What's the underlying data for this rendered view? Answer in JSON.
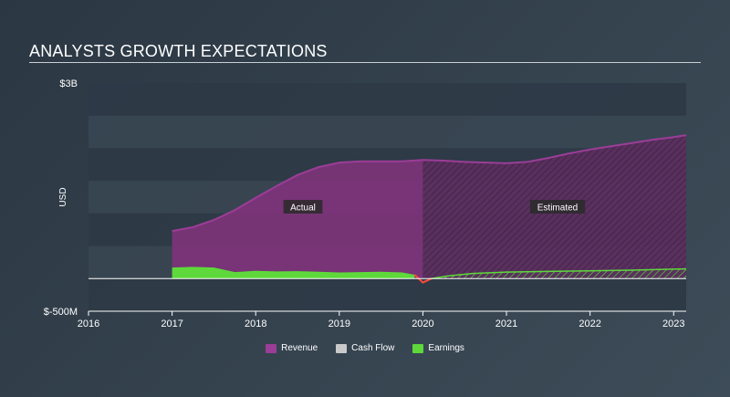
{
  "header": {
    "title": "ANALYSTS GROWTH EXPECTATIONS"
  },
  "chart_data": {
    "type": "area",
    "title": "ANALYSTS GROWTH EXPECTATIONS",
    "ylabel": "USD",
    "xlabel": "",
    "ylim": [
      -500,
      3000
    ],
    "y_unit": "M USD",
    "y_tick_labels": [
      {
        "value": 3000,
        "label": "$3B"
      },
      {
        "value": -500,
        "label": "$-500M"
      }
    ],
    "xlim": [
      2016.0,
      2023.15
    ],
    "x_tick_labels": [
      "2016",
      "2017",
      "2018",
      "2019",
      "2020",
      "2021",
      "2022",
      "2023"
    ],
    "x_ticks": [
      2016,
      2017,
      2018,
      2019,
      2020,
      2021,
      2022,
      2023
    ],
    "actual_end": 2020.0,
    "region_labels": {
      "actual": "Actual",
      "estimated": "Estimated"
    },
    "legend_position": "bottom-center",
    "series": [
      {
        "name": "Revenue",
        "color": "#9b3d97",
        "x": [
          2017.0,
          2017.25,
          2017.5,
          2017.75,
          2018.0,
          2018.25,
          2018.5,
          2018.75,
          2019.0,
          2019.25,
          2019.5,
          2019.75,
          2020.0,
          2020.25,
          2020.5,
          2020.75,
          2021.0,
          2021.25,
          2021.5,
          2021.75,
          2022.0,
          2022.25,
          2022.5,
          2022.75,
          2023.0,
          2023.15
        ],
        "values": [
          730,
          790,
          900,
          1050,
          1240,
          1420,
          1590,
          1710,
          1780,
          1800,
          1800,
          1800,
          1820,
          1810,
          1790,
          1780,
          1770,
          1790,
          1850,
          1920,
          1980,
          2030,
          2080,
          2130,
          2170,
          2200
        ]
      },
      {
        "name": "Cash Flow",
        "color": "#c9c9c9",
        "x": [],
        "values": []
      },
      {
        "name": "Earnings",
        "color": "#5ed83b",
        "x": [
          2017.0,
          2017.25,
          2017.5,
          2017.75,
          2018.0,
          2018.25,
          2018.5,
          2018.75,
          2019.0,
          2019.25,
          2019.5,
          2019.75,
          2019.9,
          2020.0,
          2020.1,
          2020.3,
          2020.6,
          2021.0,
          2021.5,
          2022.0,
          2022.5,
          2023.0,
          2023.15
        ],
        "values": [
          170,
          180,
          170,
          100,
          120,
          110,
          115,
          105,
          95,
          100,
          105,
          95,
          60,
          -60,
          0,
          40,
          80,
          100,
          110,
          120,
          130,
          145,
          150
        ]
      }
    ]
  }
}
